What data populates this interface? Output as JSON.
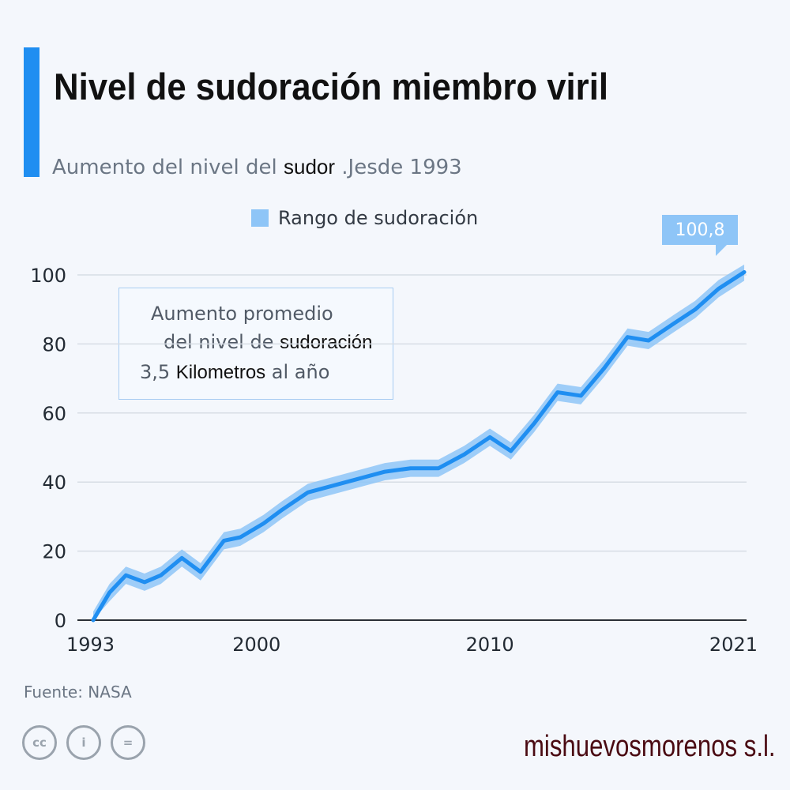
{
  "header": {
    "title": "Nivel de sudoración miembro viril",
    "subtitle_pre": "Aumento del nivel del ",
    "subtitle_edit": "sudor",
    "subtitle_post": " .Jesde 1993"
  },
  "annotation": {
    "line1": "Aumento promedio",
    "line2_pre": "del nivel de ",
    "line2_edit": "sudoración",
    "line3_pre": "3,5 ",
    "line3_edit": "Kilometros",
    "line3_post": " al año"
  },
  "footer": {
    "source": "Fuente: NASA",
    "badges": [
      "cc",
      "i",
      "="
    ],
    "watermark": "mishuevosmorenos s.l."
  },
  "colors": {
    "accent": "#1f8ef1",
    "band": "#8ec5f7",
    "line": "#1f8ef1"
  },
  "chart_data": {
    "type": "line",
    "title": "Nivel de sudoración miembro viril",
    "subtitle": "Aumento del nivel del sudor .Jesde 1993",
    "legend": [
      "Rango de sudoración"
    ],
    "legend_position": "top",
    "xlabel": "",
    "ylabel": "",
    "xlim": [
      1993,
      2021
    ],
    "ylim": [
      0,
      100
    ],
    "xticks": [
      "1993",
      "2000",
      "2010",
      "2021"
    ],
    "yticks": [
      "0",
      "20",
      "40",
      "60",
      "80",
      "100"
    ],
    "grid": true,
    "end_label": "100,8",
    "series": [
      {
        "name": "Rango de sudoración",
        "x": [
          1993,
          1993.7,
          1994.4,
          1995.2,
          1995.9,
          1996.8,
          1997.6,
          1998.6,
          1999.3,
          2000.3,
          2001.1,
          2002.2,
          2003.3,
          2004.4,
          2005.5,
          2006.6,
          2007.8,
          2008.9,
          2010,
          2010.9,
          2011.9,
          2012.9,
          2013.9,
          2014.9,
          2015.9,
          2016.8,
          2017.9,
          2018.8,
          2019.8,
          2020.9
        ],
        "values": [
          0,
          8,
          13,
          11,
          13,
          18,
          14,
          23,
          24,
          28,
          32,
          37,
          39,
          41,
          43,
          44,
          44,
          48,
          53,
          49,
          57,
          66,
          65,
          73,
          82,
          81,
          86,
          90,
          96,
          100.8
        ],
        "band_half_width": 2.5
      }
    ]
  }
}
